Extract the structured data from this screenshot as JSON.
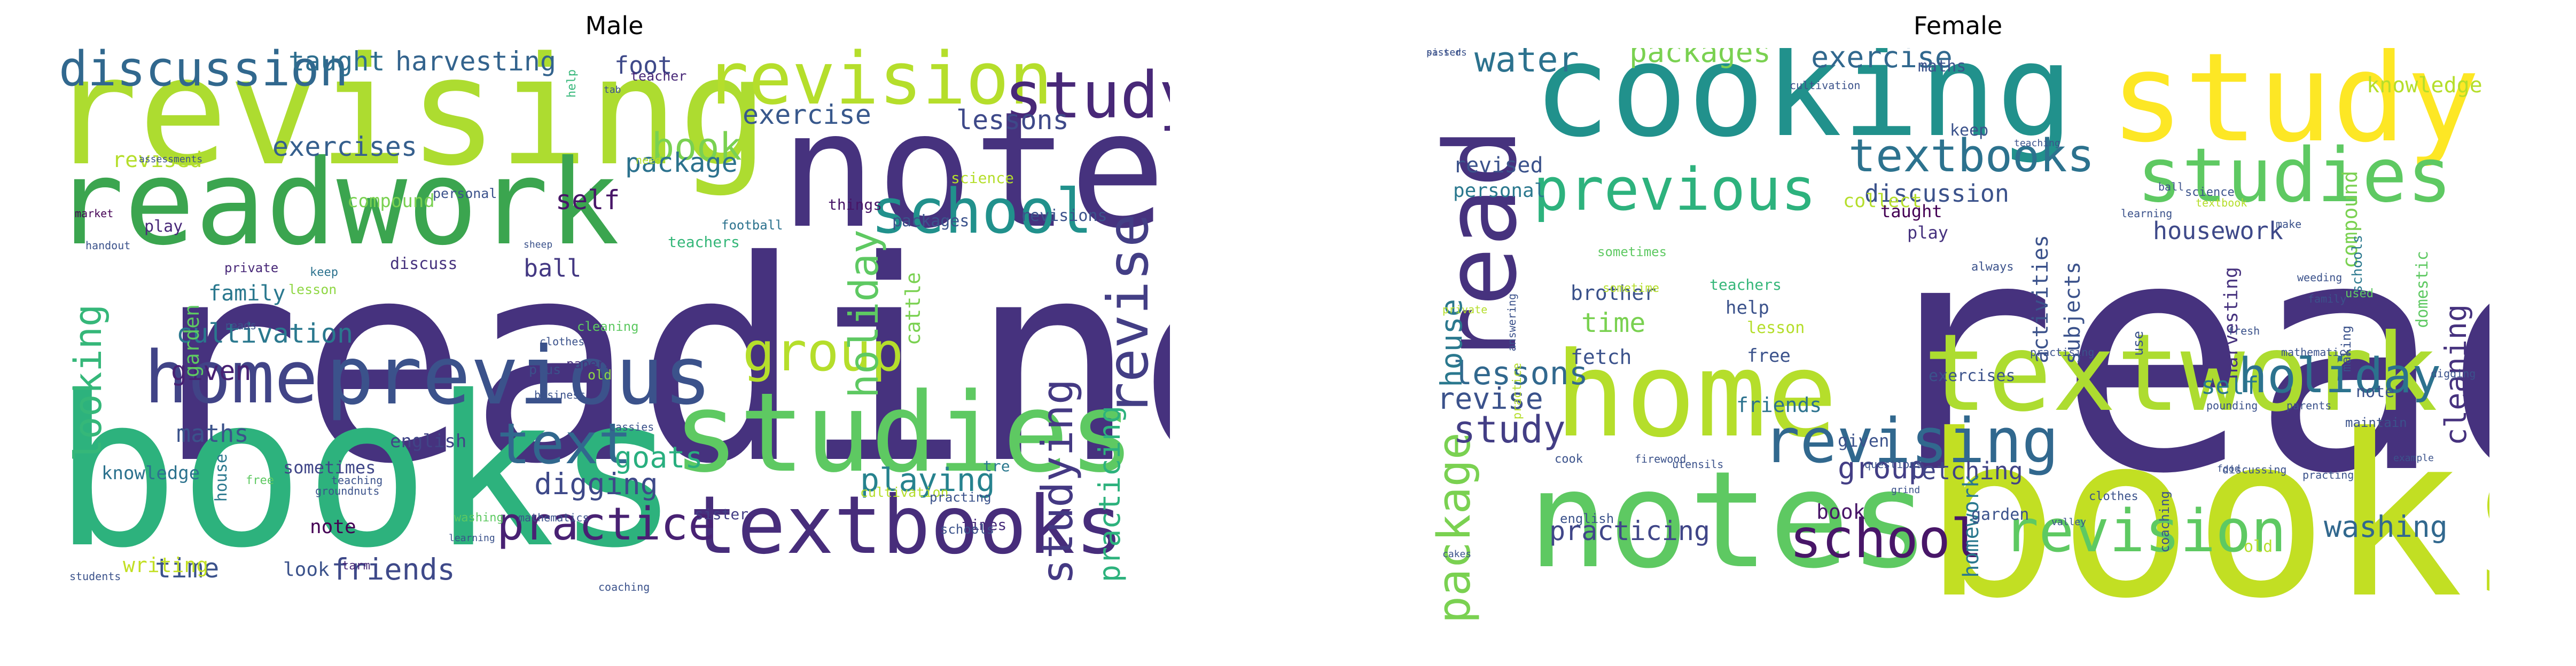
{
  "chart_data": [
    {
      "type": "wordcloud",
      "title": "Male",
      "words": [
        {
          "t": "reading",
          "s": 1.0,
          "c": "#46327e"
        },
        {
          "t": "books",
          "s": 0.78,
          "c": "#2db27d"
        },
        {
          "t": "notes",
          "s": 0.56,
          "c": "#46327e"
        },
        {
          "t": "revising",
          "s": 0.52,
          "c": "#addc30"
        },
        {
          "t": "readwork",
          "s": 0.42,
          "c": "#3ba54f"
        },
        {
          "t": "studies",
          "s": 0.4,
          "c": "#5ec962"
        },
        {
          "t": "previous",
          "s": 0.3,
          "c": "#3b528b"
        },
        {
          "t": "textbooks",
          "s": 0.3,
          "c": "#472d7b"
        },
        {
          "t": "revision",
          "s": 0.27,
          "c": "#b5de2b"
        },
        {
          "t": "home",
          "s": 0.27,
          "c": "#414487"
        },
        {
          "t": "study",
          "s": 0.24,
          "c": "#482878"
        },
        {
          "t": "school",
          "s": 0.22,
          "c": "#21918c"
        },
        {
          "t": "text",
          "s": 0.21,
          "c": "#31688e"
        },
        {
          "t": "revise",
          "s": 0.21,
          "c": "#433e85"
        },
        {
          "t": "group",
          "s": 0.2,
          "c": "#b5de2b"
        },
        {
          "t": "discussion",
          "s": 0.18,
          "c": "#31688e"
        },
        {
          "t": "practice",
          "s": 0.17,
          "c": "#482173"
        },
        {
          "t": "studying",
          "s": 0.16,
          "c": "#443983"
        },
        {
          "t": "holiday",
          "s": 0.15,
          "c": "#5ec962"
        },
        {
          "t": "book",
          "s": 0.14,
          "c": "#7ad151"
        },
        {
          "t": "looking",
          "s": 0.14,
          "c": "#35b779"
        },
        {
          "t": "playing",
          "s": 0.12,
          "c": "#26828e"
        },
        {
          "t": "digging",
          "s": 0.11,
          "c": "#3e4989"
        },
        {
          "t": "goats",
          "s": 0.11,
          "c": "#29af7f"
        },
        {
          "t": "friends",
          "s": 0.11,
          "c": "#3e4989"
        },
        {
          "t": "practicing",
          "s": 0.1,
          "c": "#2db27d"
        },
        {
          "t": "harvesting",
          "s": 0.1,
          "c": "#33638d"
        },
        {
          "t": "taught",
          "s": 0.1,
          "c": "#2e6e8e"
        },
        {
          "t": "exercise",
          "s": 0.1,
          "c": "#38588c"
        },
        {
          "t": "exercises",
          "s": 0.1,
          "c": "#355f8d"
        },
        {
          "t": "lessons",
          "s": 0.1,
          "c": "#3e4989"
        },
        {
          "t": "package",
          "s": 0.1,
          "c": "#2c728e"
        },
        {
          "t": "cultivation",
          "s": 0.1,
          "c": "#2a788e"
        },
        {
          "t": "self",
          "s": 0.1,
          "c": "#481668"
        },
        {
          "t": "given",
          "s": 0.1,
          "c": "#482173"
        },
        {
          "t": "time",
          "s": 0.1,
          "c": "#3b528b"
        },
        {
          "t": "foot",
          "s": 0.1,
          "c": "#3e4989"
        },
        {
          "t": "ball",
          "s": 0.09,
          "c": "#443983"
        },
        {
          "t": "maths",
          "s": 0.09,
          "c": "#3b528b"
        },
        {
          "t": "family",
          "s": 0.09,
          "c": "#2a788e"
        },
        {
          "t": "garden",
          "s": 0.09,
          "c": "#5ec962"
        },
        {
          "t": "revised",
          "s": 0.09,
          "c": "#b5de2b"
        },
        {
          "t": "cattle",
          "s": 0.08,
          "c": "#7ad151"
        },
        {
          "t": "writing",
          "s": 0.08,
          "c": "#c2df23"
        },
        {
          "t": "note",
          "s": 0.08,
          "c": "#440154"
        },
        {
          "t": "look",
          "s": 0.08,
          "c": "#3b528b"
        },
        {
          "t": "compound",
          "s": 0.08,
          "c": "#7ad151"
        },
        {
          "t": "english",
          "s": 0.07,
          "c": "#414487"
        },
        {
          "t": "knowledge",
          "s": 0.07,
          "c": "#2c728e"
        },
        {
          "t": "sometimes",
          "s": 0.07,
          "c": "#404688"
        },
        {
          "t": "house",
          "s": 0.06,
          "c": "#2a788e"
        },
        {
          "t": "play",
          "s": 0.06,
          "c": "#482878"
        },
        {
          "t": "packages",
          "s": 0.06,
          "c": "#3b528b"
        },
        {
          "t": "revisions",
          "s": 0.06,
          "c": "#3b528b"
        },
        {
          "t": "discuss",
          "s": 0.06,
          "c": "#46327e"
        },
        {
          "t": "things",
          "s": 0.05,
          "c": "#481668"
        },
        {
          "t": "science",
          "s": 0.05,
          "c": "#b5de2b"
        },
        {
          "t": "teachers",
          "s": 0.05,
          "c": "#35b779"
        },
        {
          "t": "sister",
          "s": 0.05,
          "c": "#433e85"
        },
        {
          "t": "times",
          "s": 0.05,
          "c": "#472d7b"
        },
        {
          "t": "tre",
          "s": 0.05,
          "c": "#2a788e"
        },
        {
          "t": "lesson",
          "s": 0.04,
          "c": "#8fd744"
        },
        {
          "t": "teacher",
          "s": 0.04,
          "c": "#482878"
        },
        {
          "t": "plus",
          "s": 0.04,
          "c": "#3b528b"
        },
        {
          "t": "old",
          "s": 0.04,
          "c": "#8fd744"
        },
        {
          "t": "cultivation",
          "s": 0.04,
          "c": "#b5de2b"
        },
        {
          "t": "personal",
          "s": 0.04,
          "c": "#3b528b"
        },
        {
          "t": "private",
          "s": 0.04,
          "c": "#482878"
        },
        {
          "t": "football",
          "s": 0.04,
          "c": "#2c728e"
        },
        {
          "t": "papers",
          "s": 0.04,
          "c": "#46327e"
        },
        {
          "t": "cleaning",
          "s": 0.04,
          "c": "#5ec962"
        },
        {
          "t": "practing",
          "s": 0.04,
          "c": "#3b528b"
        },
        {
          "t": "schools",
          "s": 0.04,
          "c": "#3b528b"
        },
        {
          "t": "help",
          "s": 0.04,
          "c": "#35b779"
        },
        {
          "t": "tarm",
          "s": 0.03,
          "c": "#482878"
        },
        {
          "t": "free",
          "s": 0.03,
          "c": "#5ec962"
        },
        {
          "t": "keep",
          "s": 0.03,
          "c": "#2c728e"
        },
        {
          "t": "reads",
          "s": 0.03,
          "c": "#3b528b"
        },
        {
          "t": "need",
          "s": 0.03,
          "c": "#b5de2b"
        },
        {
          "t": "handout",
          "s": 0.03,
          "c": "#3b528b"
        },
        {
          "t": "market",
          "s": 0.03,
          "c": "#440154"
        },
        {
          "t": "business",
          "s": 0.03,
          "c": "#3b528b"
        },
        {
          "t": "cassies",
          "s": 0.03,
          "c": "#3b528b"
        },
        {
          "t": "teaching",
          "s": 0.03,
          "c": "#3b528b"
        },
        {
          "t": "students",
          "s": 0.03,
          "c": "#3b528b"
        },
        {
          "t": "coaching",
          "s": 0.03,
          "c": "#3b528b"
        },
        {
          "t": "groundnuts",
          "s": 0.03,
          "c": "#3b528b"
        },
        {
          "t": "mathematics",
          "s": 0.03,
          "c": "#3b528b"
        },
        {
          "t": "clothes",
          "s": 0.03,
          "c": "#3b528b"
        },
        {
          "t": "washing",
          "s": 0.03,
          "c": "#5ec962"
        },
        {
          "t": "assessments",
          "s": 0.03,
          "c": "#3b528b"
        },
        {
          "t": "learning",
          "s": 0.03,
          "c": "#3b528b"
        },
        {
          "t": "sheep",
          "s": 0.03,
          "c": "#3b528b"
        },
        {
          "t": "tab",
          "s": 0.03,
          "c": "#3b528b"
        }
      ]
    },
    {
      "type": "wordcloud",
      "title": "Female",
      "words": [
        {
          "t": "reading",
          "s": 1.0,
          "c": "#46327e"
        },
        {
          "t": "books",
          "s": 0.8,
          "c": "#c2df23"
        },
        {
          "t": "notes",
          "s": 0.48,
          "c": "#5ec962"
        },
        {
          "t": "studying",
          "s": 0.46,
          "c": "#fde725"
        },
        {
          "t": "cooking",
          "s": 0.45,
          "c": "#21918c"
        },
        {
          "t": "home",
          "s": 0.4,
          "c": "#b5de2b"
        },
        {
          "t": "textwork",
          "s": 0.38,
          "c": "#addc30"
        },
        {
          "t": "read",
          "s": 0.32,
          "c": "#46327e"
        },
        {
          "t": "studies",
          "s": 0.24,
          "c": "#5ec962"
        },
        {
          "t": "revising",
          "s": 0.21,
          "c": "#31688e"
        },
        {
          "t": "previous",
          "s": 0.19,
          "c": "#2db27d"
        },
        {
          "t": "revision",
          "s": 0.19,
          "c": "#5ec962"
        },
        {
          "t": "school",
          "s": 0.17,
          "c": "#481668"
        },
        {
          "t": "holiday",
          "s": 0.15,
          "c": "#2c728e"
        },
        {
          "t": "textbooks",
          "s": 0.15,
          "c": "#2c728e"
        },
        {
          "t": "package",
          "s": 0.14,
          "c": "#7ad151"
        },
        {
          "t": "study",
          "s": 0.13,
          "c": "#433e85"
        },
        {
          "t": "lessons",
          "s": 0.12,
          "c": "#31688e"
        },
        {
          "t": "water",
          "s": 0.12,
          "c": "#2c728e"
        },
        {
          "t": "cleaning",
          "s": 0.11,
          "c": "#46327e"
        },
        {
          "t": "revise",
          "s": 0.11,
          "c": "#3b528b"
        },
        {
          "t": "house",
          "s": 0.11,
          "c": "#2a788e"
        },
        {
          "t": "exercise",
          "s": 0.1,
          "c": "#31688e"
        },
        {
          "t": "packages",
          "s": 0.1,
          "c": "#7ad151"
        },
        {
          "t": "group",
          "s": 0.1,
          "c": "#433e85"
        },
        {
          "t": "washing",
          "s": 0.1,
          "c": "#31688e"
        },
        {
          "t": "time",
          "s": 0.1,
          "c": "#7ad151"
        },
        {
          "t": "practicing",
          "s": 0.1,
          "c": "#404688"
        },
        {
          "t": "fetching",
          "s": 0.09,
          "c": "#414487"
        },
        {
          "t": "discussion",
          "s": 0.09,
          "c": "#3b528b"
        },
        {
          "t": "activities",
          "s": 0.09,
          "c": "#3b528b"
        },
        {
          "t": "subjects",
          "s": 0.09,
          "c": "#3b528b"
        },
        {
          "t": "compound",
          "s": 0.09,
          "c": "#7ad151"
        },
        {
          "t": "housework",
          "s": 0.08,
          "c": "#3e4989"
        },
        {
          "t": "self",
          "s": 0.08,
          "c": "#2a788e"
        },
        {
          "t": "revised",
          "s": 0.08,
          "c": "#3b528b"
        },
        {
          "t": "personal",
          "s": 0.08,
          "c": "#2a788e"
        },
        {
          "t": "homework",
          "s": 0.08,
          "c": "#2a788e"
        },
        {
          "t": "harvesting",
          "s": 0.08,
          "c": "#46327e"
        },
        {
          "t": "knowledge",
          "s": 0.08,
          "c": "#b5de2b"
        },
        {
          "t": "brother",
          "s": 0.08,
          "c": "#3b528b"
        },
        {
          "t": "fetch",
          "s": 0.08,
          "c": "#3b528b"
        },
        {
          "t": "book",
          "s": 0.08,
          "c": "#481668"
        },
        {
          "t": "friends",
          "s": 0.07,
          "c": "#2c728e"
        },
        {
          "t": "collect",
          "s": 0.07,
          "c": "#b5de2b"
        },
        {
          "t": "taught",
          "s": 0.07,
          "c": "#440154"
        },
        {
          "t": "play",
          "s": 0.07,
          "c": "#46327e"
        },
        {
          "t": "given",
          "s": 0.07,
          "c": "#3b528b"
        },
        {
          "t": "free",
          "s": 0.07,
          "c": "#3b528b"
        },
        {
          "t": "help",
          "s": 0.07,
          "c": "#3b528b"
        },
        {
          "t": "garden",
          "s": 0.07,
          "c": "#3b528b"
        },
        {
          "t": "domestic",
          "s": 0.07,
          "c": "#5ec962"
        },
        {
          "t": "exercises",
          "s": 0.06,
          "c": "#3b528b"
        },
        {
          "t": "lesson",
          "s": 0.06,
          "c": "#b5de2b"
        },
        {
          "t": "old",
          "s": 0.06,
          "c": "#b5de2b"
        },
        {
          "t": "maths",
          "s": 0.06,
          "c": "#3b528b"
        },
        {
          "t": "keep",
          "s": 0.06,
          "c": "#3b528b"
        },
        {
          "t": "teachers",
          "s": 0.06,
          "c": "#35b779"
        },
        {
          "t": "schools",
          "s": 0.06,
          "c": "#2a788e"
        },
        {
          "t": "use",
          "s": 0.06,
          "c": "#3b528b"
        },
        {
          "t": "note",
          "s": 0.06,
          "c": "#3b528b"
        },
        {
          "t": "making",
          "s": 0.06,
          "c": "#3b528b"
        },
        {
          "t": "maintain",
          "s": 0.05,
          "c": "#3b528b"
        },
        {
          "t": "coaching",
          "s": 0.05,
          "c": "#3b528b"
        },
        {
          "t": "sometimes",
          "s": 0.05,
          "c": "#5ec962"
        },
        {
          "t": "sometime",
          "s": 0.05,
          "c": "#b5de2b"
        },
        {
          "t": "practice",
          "s": 0.05,
          "c": "#b5de2b"
        },
        {
          "t": "english",
          "s": 0.05,
          "c": "#3b528b"
        },
        {
          "t": "cook",
          "s": 0.05,
          "c": "#3b528b"
        },
        {
          "t": "used",
          "s": 0.05,
          "c": "#5ec962"
        },
        {
          "t": "science",
          "s": 0.05,
          "c": "#3b528b"
        },
        {
          "t": "clothes",
          "s": 0.05,
          "c": "#3b528b"
        },
        {
          "t": "always",
          "s": 0.05,
          "c": "#3b528b"
        },
        {
          "t": "private",
          "s": 0.05,
          "c": "#b5de2b"
        },
        {
          "t": "answering",
          "s": 0.05,
          "c": "#3b528b"
        },
        {
          "t": "utensils",
          "s": 0.05,
          "c": "#3b528b"
        },
        {
          "t": "firewood",
          "s": 0.05,
          "c": "#3b528b"
        },
        {
          "t": "learning",
          "s": 0.05,
          "c": "#3b528b"
        },
        {
          "t": "pounding",
          "s": 0.04,
          "c": "#3b528b"
        },
        {
          "t": "practing",
          "s": 0.04,
          "c": "#3b528b"
        },
        {
          "t": "practising",
          "s": 0.04,
          "c": "#3b528b"
        },
        {
          "t": "textbook",
          "s": 0.04,
          "c": "#b5de2b"
        },
        {
          "t": "questions",
          "s": 0.04,
          "c": "#3b528b"
        },
        {
          "t": "cultivation",
          "s": 0.04,
          "c": "#3b528b"
        },
        {
          "t": "discussing",
          "s": 0.04,
          "c": "#3b528b"
        },
        {
          "t": "parents",
          "s": 0.04,
          "c": "#3b528b"
        },
        {
          "t": "make",
          "s": 0.04,
          "c": "#3b528b"
        },
        {
          "t": "fresh",
          "s": 0.04,
          "c": "#3b528b"
        },
        {
          "t": "digging",
          "s": 0.04,
          "c": "#3b528b"
        },
        {
          "t": "family",
          "s": 0.04,
          "c": "#3b528b"
        },
        {
          "t": "weeding",
          "s": 0.04,
          "c": "#3b528b"
        },
        {
          "t": "mathematics",
          "s": 0.04,
          "c": "#3b528b"
        },
        {
          "t": "ball",
          "s": 0.04,
          "c": "#3b528b"
        },
        {
          "t": "cakes",
          "s": 0.04,
          "c": "#3b528b"
        },
        {
          "t": "grind",
          "s": 0.04,
          "c": "#3b528b"
        },
        {
          "t": "food",
          "s": 0.03,
          "c": "#3b528b"
        },
        {
          "t": "teaching",
          "s": 0.03,
          "c": "#3b528b"
        },
        {
          "t": "example",
          "s": 0.03,
          "c": "#3b528b"
        },
        {
          "t": "valley",
          "s": 0.03,
          "c": "#3b528b"
        },
        {
          "t": "sisters",
          "s": 0.03,
          "c": "#3b528b"
        },
        {
          "t": "passed",
          "s": 0.03,
          "c": "#3b528b"
        }
      ]
    }
  ]
}
